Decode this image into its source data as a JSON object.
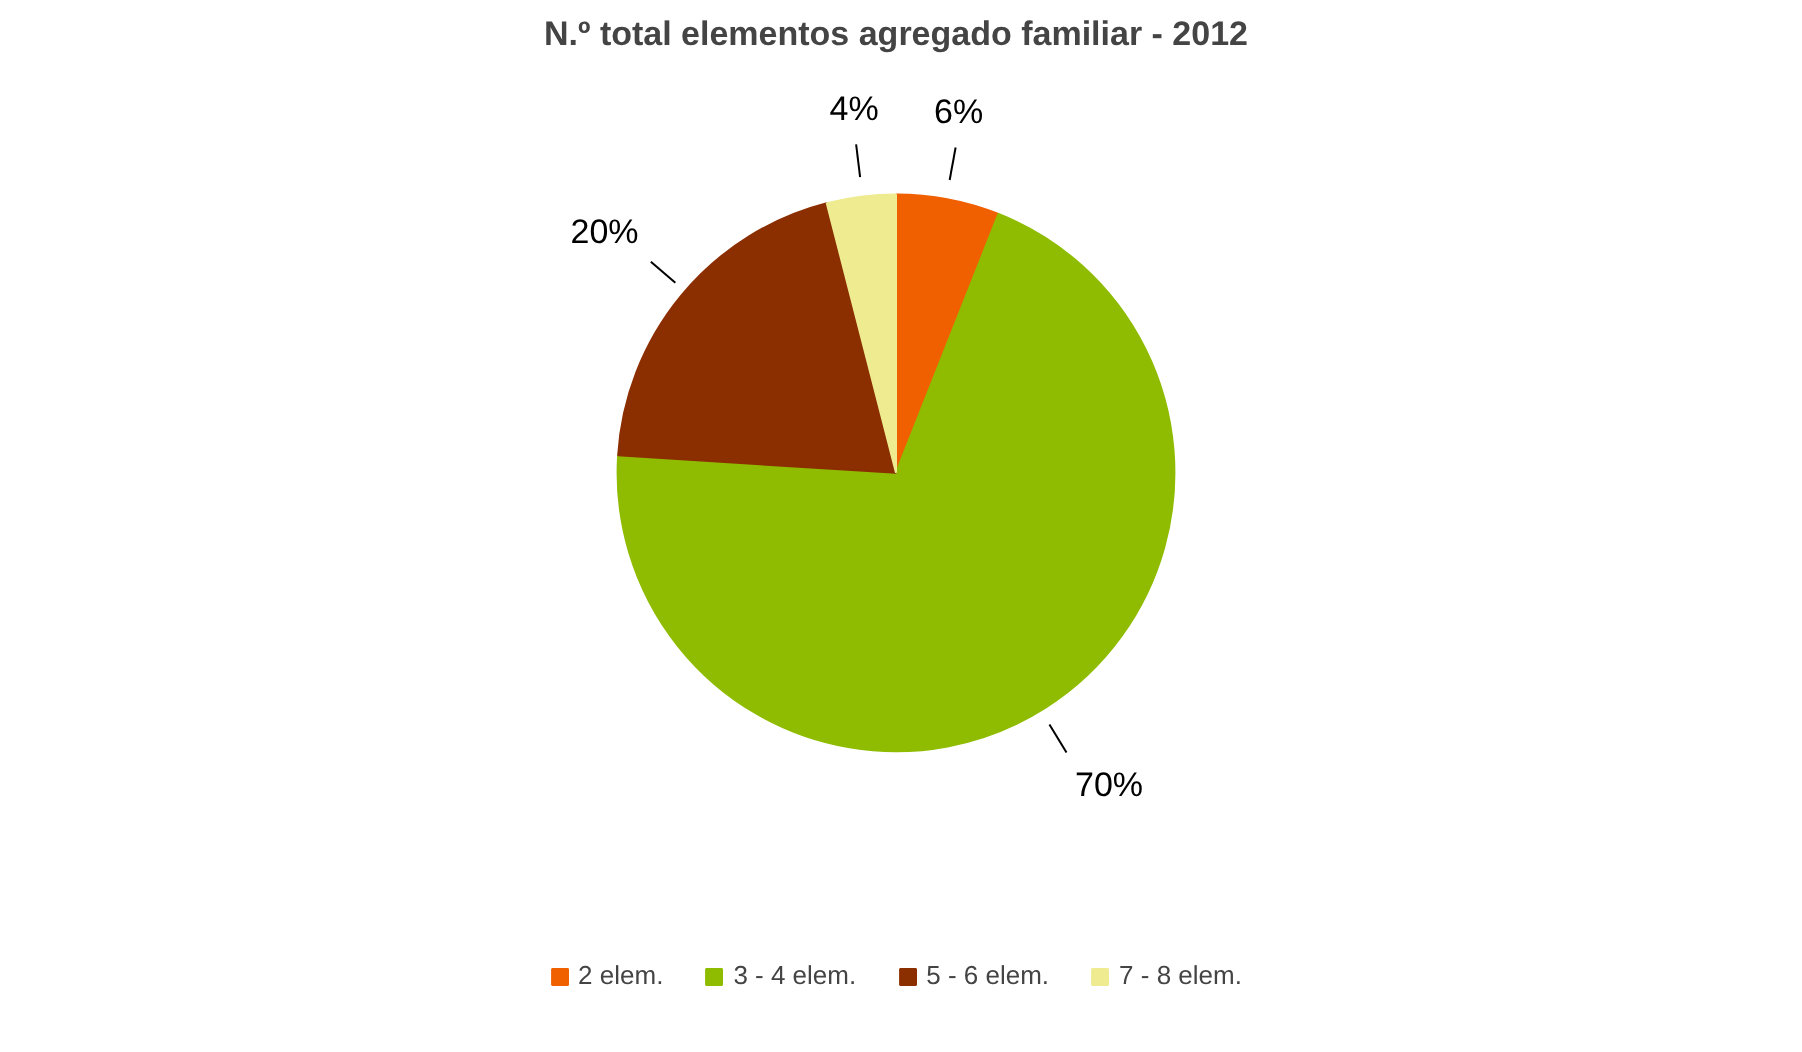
{
  "chart_data": {
    "type": "pie",
    "title": "N.º total elementos agregado familiar - 2012",
    "categories": [
      "2 elem.",
      "3 - 4 elem.",
      "5 - 6 elem.",
      "7 - 8 elem."
    ],
    "values": [
      6,
      70,
      20,
      4
    ],
    "value_labels": [
      "6%",
      "70%",
      "20%",
      "4%"
    ],
    "colors": [
      "#f06000",
      "#8fbc00",
      "#8b2e00",
      "#eeeb90"
    ],
    "legend": "bottom"
  }
}
